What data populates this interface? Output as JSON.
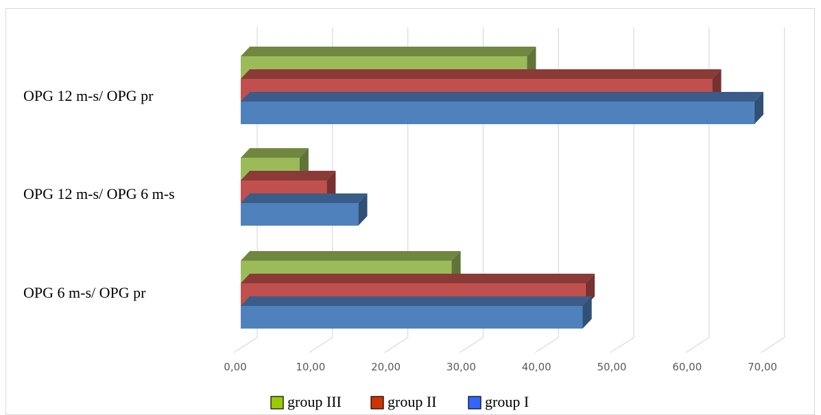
{
  "chart_data": {
    "type": "bar",
    "orientation": "horizontal",
    "style": "3d",
    "categories": [
      "OPG 6 m-s/ OPG pr",
      "OPG 12 m-s/ OPG 6 m-s",
      "OPG 12 m-s/ OPG pr"
    ],
    "series": [
      {
        "name": "group I",
        "values": [
          45.4,
          15.6,
          68.2
        ]
      },
      {
        "name": "group II",
        "values": [
          45.8,
          11.4,
          62.6
        ]
      },
      {
        "name": "group III",
        "values": [
          28.0,
          7.8,
          38.0
        ]
      }
    ],
    "xlim": [
      0,
      70
    ],
    "xticks": [
      "0,00",
      "10,00",
      "20,00",
      "30,00",
      "40,00",
      "50,00",
      "60,00",
      "70,00"
    ],
    "grid": true,
    "legend_position": "bottom",
    "legend": [
      {
        "name": "group III",
        "swatch_color": "#99cc00"
      },
      {
        "name": "group II",
        "swatch_color": "#cc3300"
      },
      {
        "name": "group I",
        "swatch_color": "#3366ff"
      }
    ],
    "colors": {
      "group I": "#4f81bd",
      "group II": "#c0504d",
      "group III": "#9bbb59"
    }
  }
}
